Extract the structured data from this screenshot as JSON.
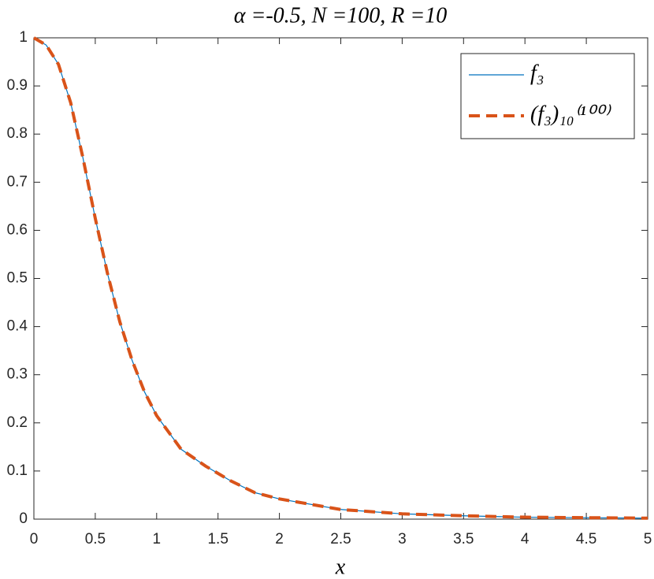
{
  "chart_data": {
    "type": "line",
    "title": "α =-0.5, N =100, R =10",
    "x_label": "x",
    "x": [
      0,
      0.1,
      0.2,
      0.3,
      0.4,
      0.5,
      0.6,
      0.7,
      0.8,
      0.9,
      1.0,
      1.2,
      1.4,
      1.6,
      1.8,
      2.0,
      2.5,
      3,
      3.5,
      4,
      4.5,
      5
    ],
    "series": [
      {
        "name": "f₃",
        "color": "#0072bd",
        "style": "solid",
        "values": [
          1,
          0.985,
          0.945,
          0.865,
          0.75,
          0.625,
          0.51,
          0.41,
          0.33,
          0.265,
          0.215,
          0.145,
          0.11,
          0.08,
          0.055,
          0.042,
          0.02,
          0.011,
          0.007,
          0.004,
          0.003,
          0.002
        ]
      },
      {
        "name": "(f₃)₁₀⁽¹⁰⁰⁾",
        "color": "#d95319",
        "style": "dashed",
        "values": [
          1,
          0.985,
          0.945,
          0.865,
          0.75,
          0.625,
          0.51,
          0.41,
          0.33,
          0.265,
          0.215,
          0.145,
          0.11,
          0.08,
          0.055,
          0.042,
          0.02,
          0.011,
          0.007,
          0.004,
          0.003,
          0.002
        ]
      }
    ],
    "xlim": [
      0,
      5
    ],
    "ylim": [
      0,
      1
    ],
    "xticks": [
      0,
      0.5,
      1,
      1.5,
      2,
      2.5,
      3,
      3.5,
      4,
      4.5,
      5
    ],
    "yticks": [
      0,
      0.1,
      0.2,
      0.3,
      0.4,
      0.5,
      0.6,
      0.7,
      0.8,
      0.9,
      1
    ],
    "grid": false,
    "legend": "upper-right"
  }
}
